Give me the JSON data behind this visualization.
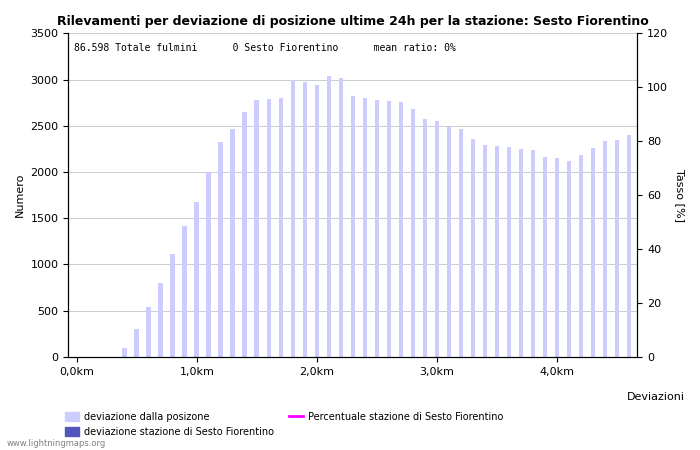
{
  "title": "Rilevamenti per deviazione di posizione ultime 24h per la stazione: Sesto Fiorentino",
  "subtitle": "86.598 Totale fulmini      0 Sesto Fiorentino      mean ratio: 0%",
  "xlabel": "Deviazioni",
  "ylabel_left": "Numero",
  "ylabel_right": "Tasso [%]",
  "light_bars": [
    0,
    0,
    0,
    0,
    100,
    300,
    540,
    800,
    1110,
    1420,
    1680,
    2000,
    2320,
    2470,
    2650,
    2780,
    2790,
    2800,
    3000,
    2970,
    2940,
    3040,
    3020,
    2820,
    2800,
    2780,
    2770,
    2760,
    2680,
    2570,
    2550,
    2490,
    2470,
    2360,
    2290,
    2280,
    2270,
    2250,
    2240,
    2160,
    2150,
    2120,
    2180,
    2260,
    2330,
    2350,
    2400
  ],
  "dark_bars": [
    0,
    0,
    0,
    0,
    0,
    0,
    0,
    0,
    0,
    0,
    0,
    0,
    0,
    0,
    0,
    0,
    0,
    0,
    0,
    0,
    0,
    0,
    0,
    0,
    0,
    0,
    0,
    0,
    0,
    0,
    0,
    0,
    0,
    0,
    0,
    0,
    0,
    0,
    0,
    0,
    0,
    0,
    0,
    0,
    0,
    0,
    0
  ],
  "bar_color_light": "#ccccff",
  "bar_color_dark": "#5555bb",
  "ylim_left": [
    0,
    3500
  ],
  "ylim_right": [
    0,
    120
  ],
  "yticks_left": [
    0,
    500,
    1000,
    1500,
    2000,
    2500,
    3000,
    3500
  ],
  "yticks_right": [
    0,
    20,
    40,
    60,
    80,
    100,
    120
  ],
  "xtick_positions": [
    0,
    10,
    20,
    30,
    40
  ],
  "xtick_labels": [
    "0,0km",
    "1,0km",
    "2,0km",
    "3,0km",
    "4,0km"
  ],
  "background_color": "#ffffff",
  "grid_color": "#cccccc",
  "watermark": "www.lightningmaps.org",
  "legend1": "deviazione dalla posizone",
  "legend2": "deviazione stazione di Sesto Fiorentino",
  "legend3": "Percentuale stazione di Sesto Fiorentino",
  "title_fontsize": 9,
  "axis_fontsize": 8,
  "subtitle_fontsize": 7
}
